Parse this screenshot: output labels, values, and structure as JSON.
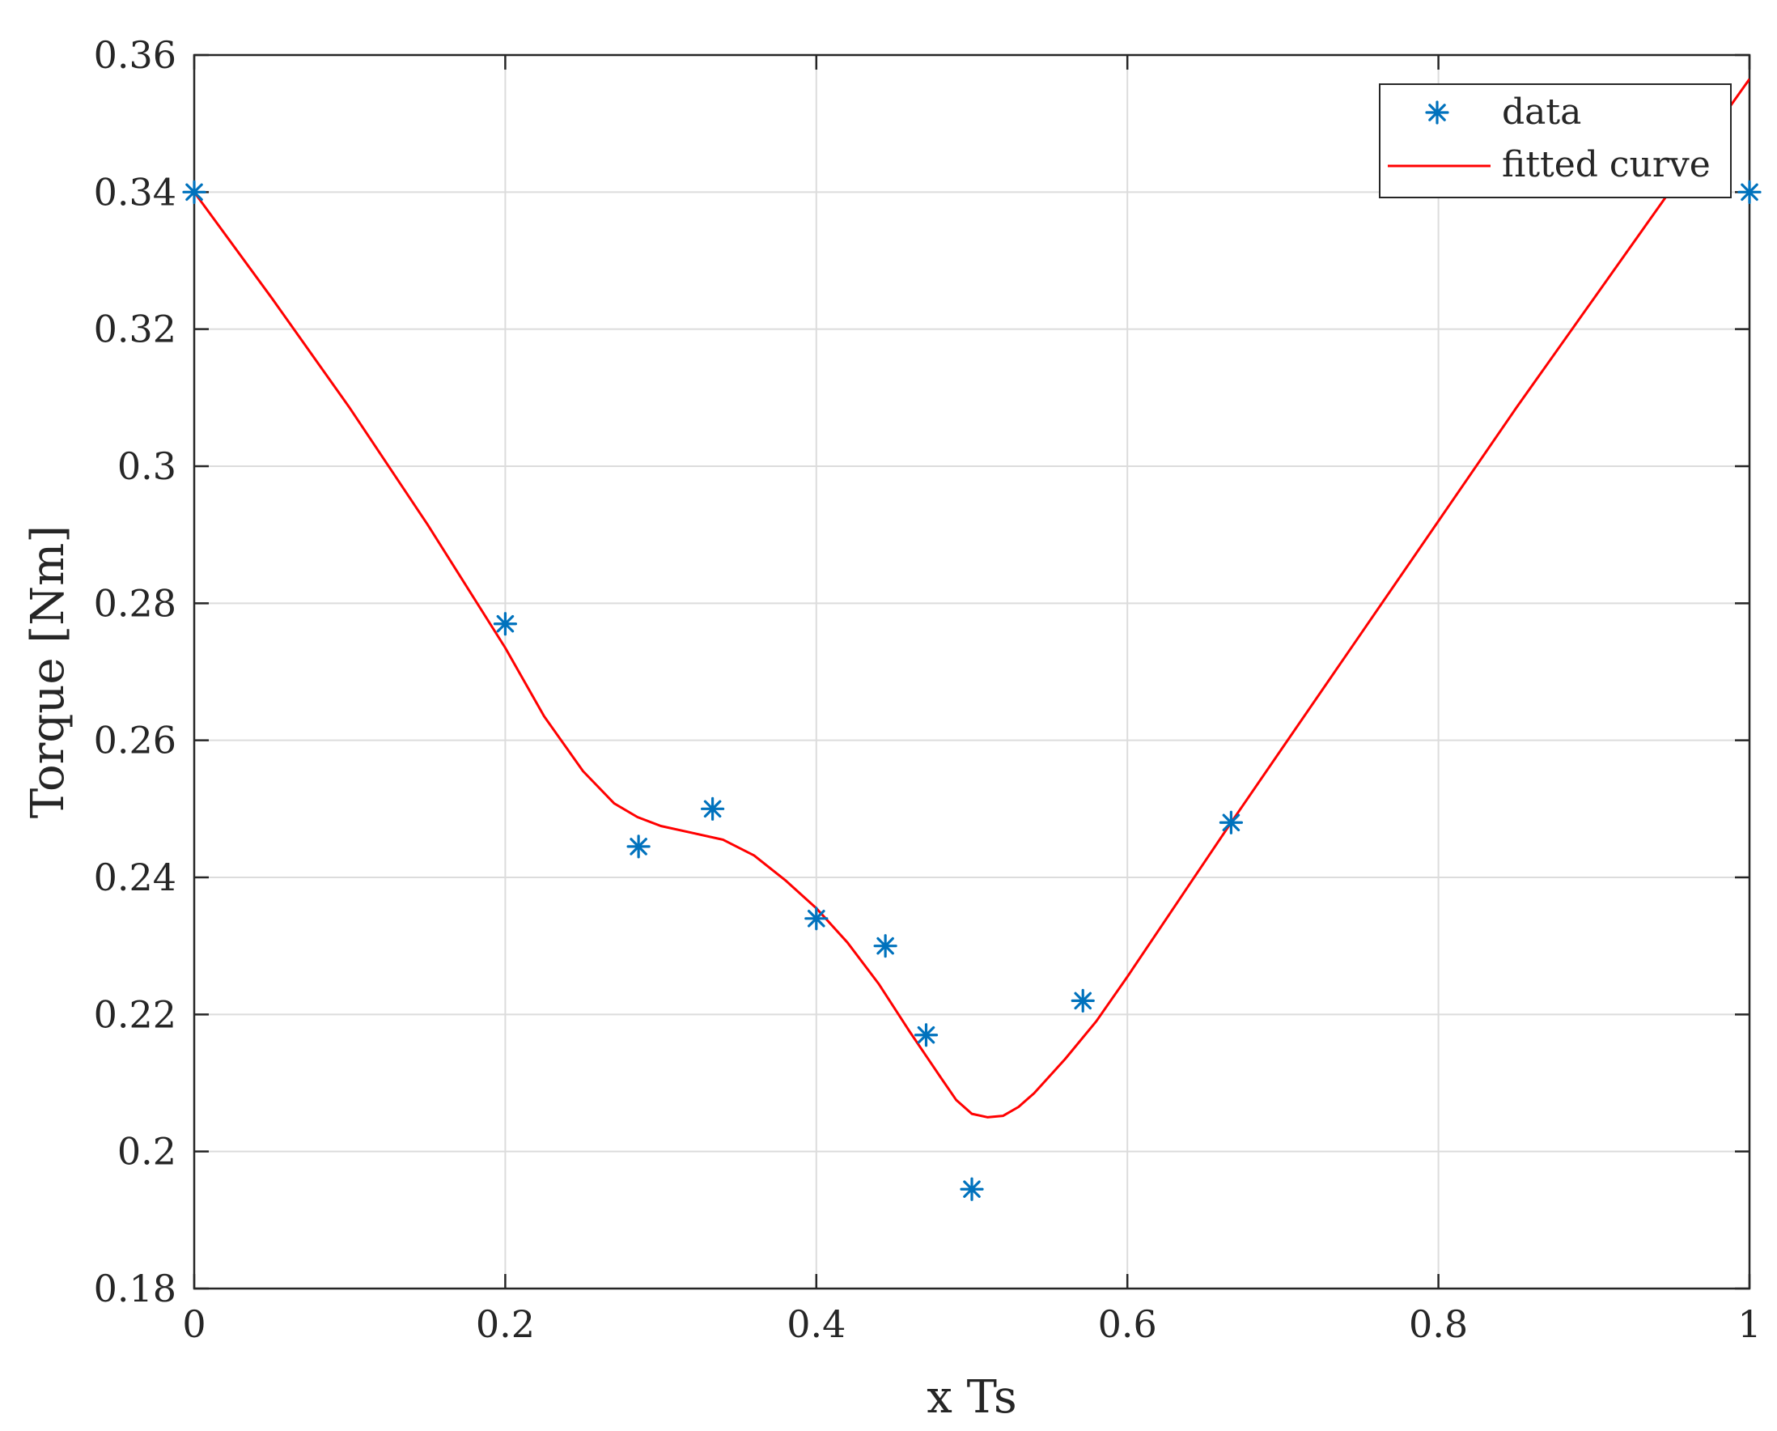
{
  "chart_data": {
    "type": "scatter",
    "xlabel": "x Ts",
    "ylabel": "Torque [Nm]",
    "xlim": [
      0,
      1
    ],
    "ylim": [
      0.18,
      0.36
    ],
    "xticks": [
      0,
      0.2,
      0.4,
      0.6,
      0.8,
      1
    ],
    "xtick_labels": [
      "0",
      "0.2",
      "0.4",
      "0.6",
      "0.8",
      "1"
    ],
    "yticks": [
      0.18,
      0.2,
      0.22,
      0.24,
      0.26,
      0.28,
      0.3,
      0.32,
      0.34,
      0.36
    ],
    "ytick_labels": [
      "0.18",
      "0.2",
      "0.22",
      "0.24",
      "0.26",
      "0.28",
      "0.3",
      "0.32",
      "0.34",
      "0.36"
    ],
    "grid": true,
    "legend_position": "top-right",
    "series": [
      {
        "name": "data",
        "kind": "scatter",
        "marker": "asterisk",
        "color": "#0072BD",
        "x": [
          0,
          0.2,
          0.2857,
          0.3333,
          0.4,
          0.4444,
          0.4706,
          0.5,
          0.5714,
          0.6667,
          1
        ],
        "y": [
          0.34,
          0.277,
          0.2445,
          0.25,
          0.234,
          0.23,
          0.217,
          0.1945,
          0.222,
          0.248,
          0.34
        ]
      },
      {
        "name": "fitted curve",
        "kind": "line",
        "color": "#FF0000",
        "x": [
          0,
          0.05,
          0.1,
          0.15,
          0.2,
          0.225,
          0.25,
          0.27,
          0.285,
          0.3,
          0.32,
          0.34,
          0.36,
          0.38,
          0.4,
          0.42,
          0.44,
          0.46,
          0.48,
          0.49,
          0.5,
          0.51,
          0.52,
          0.53,
          0.54,
          0.56,
          0.58,
          0.6,
          0.64,
          0.6667,
          0.7,
          0.75,
          0.8,
          0.85,
          0.9,
          0.95,
          1
        ],
        "y": [
          0.34,
          0.3245,
          0.3085,
          0.2915,
          0.2735,
          0.2635,
          0.2555,
          0.2508,
          0.2488,
          0.2475,
          0.2465,
          0.2455,
          0.2432,
          0.2396,
          0.2355,
          0.2305,
          0.2245,
          0.2175,
          0.2108,
          0.2075,
          0.2055,
          0.205,
          0.2052,
          0.2065,
          0.2085,
          0.2135,
          0.219,
          0.2255,
          0.239,
          0.248,
          0.259,
          0.2755,
          0.292,
          0.3085,
          0.3245,
          0.3405,
          0.3565
        ]
      }
    ]
  }
}
